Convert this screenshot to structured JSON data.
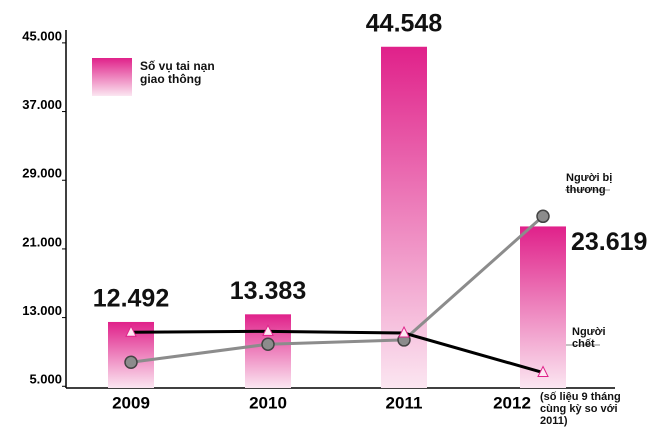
{
  "chart_data": {
    "type": "bar",
    "categories": [
      "2009",
      "2010",
      "2011",
      "2012"
    ],
    "category_note": "(số liệu 9 tháng cùng kỳ so với 2011)",
    "series": [
      {
        "name": "Số vụ tai nạn giao thông",
        "type": "bar",
        "color": "#e0218a",
        "values": [
          12492,
          13383,
          44548,
          23619
        ],
        "value_labels": [
          "12.492",
          "13.383",
          "44.548",
          "23.619"
        ]
      },
      {
        "name": "Người bị thương",
        "type": "line",
        "marker": "circle",
        "color": "#8c8c8c",
        "values": [
          7800,
          9900,
          10400,
          24800
        ]
      },
      {
        "name": "Người chết",
        "type": "line",
        "marker": "triangle",
        "color": "#000000",
        "values": [
          11300,
          11400,
          11200,
          6600
        ]
      }
    ],
    "ylim": [
      4800,
      46500
    ],
    "yticks": [
      {
        "value": 5000,
        "label": "5.000"
      },
      {
        "value": 13000,
        "label": "13.000"
      },
      {
        "value": 21000,
        "label": "21.000"
      },
      {
        "value": 29000,
        "label": "29.000"
      },
      {
        "value": 37000,
        "label": "37.000"
      },
      {
        "value": 45000,
        "label": "45.000"
      }
    ]
  }
}
